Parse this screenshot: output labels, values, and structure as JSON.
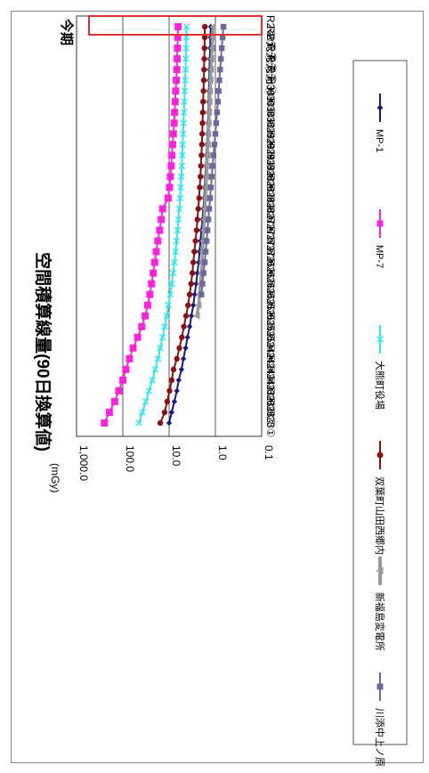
{
  "chart_data": {
    "type": "line",
    "title": "空間積算線量(90日換算値)",
    "unit_label": "(mGy)",
    "period_label": "今期",
    "y_scale": "log",
    "ylim": [
      0.1,
      1000
    ],
    "y_ticks": [
      "1,000.0",
      "100.0",
      "10.0",
      "1.0",
      "0.1"
    ],
    "grid": true,
    "legend_position": "bottom",
    "categories": [
      "H23①",
      "H23②",
      "H23③",
      "H23④",
      "H24①",
      "H24②",
      "H24③",
      "H24④",
      "H25①",
      "H25②",
      "H25③",
      "H25④",
      "H26①",
      "H26②",
      "H26③",
      "H26④",
      "H27①",
      "H27②",
      "H27③",
      "H27④",
      "H28①",
      "H28②",
      "H28③",
      "H28④",
      "H29①",
      "H29②",
      "H29③",
      "H29④",
      "H30①",
      "H30②",
      "H30③",
      "H30④",
      "R元①",
      "R元②",
      "R元③",
      "R元④",
      "R2①",
      "R2②"
    ],
    "series": [
      {
        "name": "MP-1",
        "color": "#1a1a7a",
        "marker": "diamond",
        "values": [
          10.0,
          8.8,
          7.7,
          6.8,
          6.2,
          5.4,
          4.9,
          4.4,
          4.0,
          3.6,
          3.3,
          3.0,
          2.8,
          2.6,
          2.45,
          2.3,
          2.2,
          2.1,
          2.0,
          1.9,
          1.82,
          1.75,
          1.7,
          1.65,
          1.6,
          1.56,
          1.52,
          1.48,
          1.45,
          1.42,
          1.4,
          1.38,
          1.36,
          1.34,
          1.32,
          1.3,
          1.28,
          1.26
        ]
      },
      {
        "name": "MP-7",
        "color": "#ff22dd",
        "marker": "square",
        "values": [
          250,
          195,
          150,
          122,
          100,
          86,
          72,
          60,
          48,
          39,
          33,
          29,
          26,
          24,
          22,
          20.5,
          19,
          17.5,
          16,
          14.8,
          13.8,
          10.5,
          9.8,
          9.4,
          9.0,
          8.7,
          8.4,
          8.1,
          7.8,
          7.6,
          7.4,
          7.2,
          7.0,
          6.8,
          6.7,
          6.6,
          6.5,
          6.4
        ]
      },
      {
        "name": "大熊町役場",
        "color": "#33e6ee",
        "marker": "x",
        "values": [
          45,
          38,
          32,
          27,
          23,
          20,
          17.5,
          15.5,
          13.8,
          12.5,
          11.3,
          10.3,
          9.5,
          8.8,
          8.2,
          7.7,
          7.3,
          6.9,
          6.6,
          6.3,
          6.0,
          5.8,
          5.6,
          5.45,
          5.3,
          5.2,
          5.1,
          5.0,
          4.9,
          4.8,
          4.7,
          4.6,
          4.5,
          4.42,
          4.35,
          4.3,
          4.25,
          4.2
        ]
      },
      {
        "name": "双葉町山田西郷内",
        "color": "#8b1010",
        "marker": "circle",
        "values": [
          15.5,
          12.5,
          11.0,
          9.8,
          8.8,
          8.0,
          6.8,
          6.0,
          5.3,
          4.8,
          4.3,
          3.9,
          3.6,
          3.35,
          3.15,
          3.0,
          2.85,
          2.7,
          2.55,
          2.45,
          2.35,
          2.25,
          2.18,
          2.1,
          2.05,
          2.0,
          1.96,
          1.93,
          1.9,
          1.87,
          1.84,
          1.81,
          1.78,
          1.76,
          1.74,
          1.72,
          1.7,
          1.69
        ]
      },
      {
        "name": "新福島変電所",
        "color": "#999999",
        "marker": "triangle",
        "values": [
          null,
          null,
          null,
          null,
          null,
          null,
          null,
          null,
          null,
          null,
          2.5,
          2.3,
          2.2,
          2.1,
          2.0,
          1.95,
          1.9,
          1.85,
          1.8,
          1.75,
          1.7,
          1.65,
          1.6,
          1.56,
          1.52,
          1.48,
          1.45,
          1.42,
          1.39,
          1.36,
          1.33,
          1.3,
          1.27,
          1.24,
          1.21,
          1.18,
          1.15,
          1.12
        ]
      },
      {
        "name": "川添中上ノ原",
        "color": "#6b6b9b",
        "marker": "square",
        "values": [
          null,
          null,
          null,
          null,
          null,
          null,
          null,
          null,
          null,
          null,
          null,
          null,
          2.0,
          1.9,
          1.8,
          1.7,
          1.62,
          1.55,
          1.48,
          1.42,
          1.36,
          1.3,
          1.25,
          1.2,
          1.15,
          1.1,
          1.05,
          1.0,
          0.96,
          0.92,
          0.88,
          0.85,
          0.82,
          0.79,
          0.76,
          0.73,
          0.7,
          0.67
        ]
      }
    ]
  }
}
